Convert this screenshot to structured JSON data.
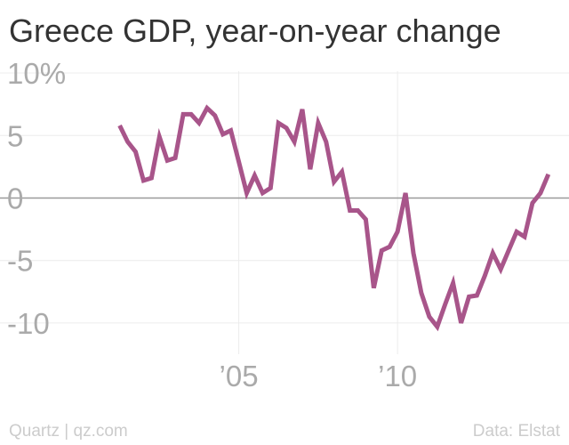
{
  "chart_data": {
    "type": "line",
    "title": "Greece GDP, year-on-year change",
    "xlabel": "",
    "ylabel": "",
    "source": "Data: Elstat",
    "credit": "Quartz | qz.com",
    "xlim": [
      2000.0,
      2015.4
    ],
    "ylim": [
      -11.5,
      11
    ],
    "yticks": [
      {
        "value": 10,
        "label": "10%"
      },
      {
        "value": 5,
        "label": "5"
      },
      {
        "value": 0,
        "label": "0"
      },
      {
        "value": -5,
        "label": "-5"
      },
      {
        "value": -10,
        "label": "-10"
      }
    ],
    "xticks": [
      {
        "value": 2005,
        "label": "’05"
      },
      {
        "value": 2010,
        "label": "’10"
      }
    ],
    "grid": true,
    "line_color": "#a8558a",
    "series": [
      {
        "x": [
          2001.25,
          2001.5,
          2001.75,
          2002.0,
          2002.25,
          2002.5,
          2002.75,
          2003.0,
          2003.25,
          2003.5,
          2003.75,
          2004.0,
          2004.25,
          2004.5,
          2004.75,
          2005.0,
          2005.25,
          2005.5,
          2005.75,
          2006.0,
          2006.25,
          2006.5,
          2006.75,
          2007.0,
          2007.25,
          2007.5,
          2007.75,
          2008.0,
          2008.25,
          2008.5,
          2008.75,
          2009.0,
          2009.25,
          2009.5,
          2009.75,
          2010.0,
          2010.25,
          2010.5,
          2010.75,
          2011.0,
          2011.25,
          2011.5,
          2011.75,
          2012.0,
          2012.25,
          2012.5,
          2012.75,
          2013.0,
          2013.25,
          2013.5,
          2013.75,
          2014.0,
          2014.25,
          2014.5,
          2014.75
        ],
        "values": [
          5.8,
          4.5,
          3.7,
          1.4,
          1.6,
          4.9,
          3.0,
          3.2,
          6.7,
          6.7,
          6.0,
          7.2,
          6.6,
          5.1,
          5.4,
          2.9,
          0.4,
          1.8,
          0.4,
          0.8,
          6.0,
          5.6,
          4.5,
          7.1,
          2.3,
          6.0,
          4.5,
          1.3,
          2.1,
          -1.0,
          -1.0,
          -1.7,
          -7.2,
          -4.2,
          -3.9,
          -2.7,
          0.4,
          -4.4,
          -7.6,
          -9.5,
          -10.3,
          -8.5,
          -6.8,
          -10.0,
          -7.9,
          -7.8,
          -6.2,
          -4.4,
          -5.7,
          -4.2,
          -2.7,
          -3.1,
          -0.4,
          0.4,
          1.9
        ]
      }
    ]
  }
}
